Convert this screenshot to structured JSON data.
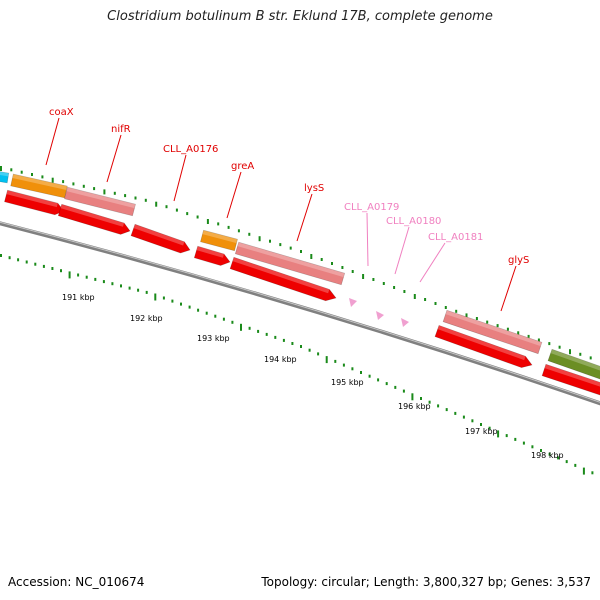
{
  "title": "Clostridium botulinum B str. Eklund 17B, complete genome",
  "footer": {
    "accession": "Accession: NC_010674",
    "topology": "Topology: circular; Length: 3,800,327 bp; Genes: 3,537"
  },
  "colors": {
    "red": "#ee0000",
    "salmon": "#e88080",
    "orange": "#f0900a",
    "olive": "#6b8e23",
    "cyan": "#00c0f0",
    "pink": "#f0a0d0",
    "ticks": "#1a8a1a",
    "backbone": "#808080",
    "label_red": "#e00000",
    "label_pink": "#f080c0"
  },
  "gene_labels": [
    "coaX",
    "nifR",
    "CLL_A0176",
    "greA",
    "lysS",
    "CLL_A0179",
    "CLL_A0180",
    "CLL_A0181",
    "glyS"
  ],
  "scale_labels": [
    "191 kbp",
    "192 kbp",
    "193 kbp",
    "194 kbp",
    "195 kbp",
    "196 kbp",
    "197 kbp",
    "198 kbp"
  ]
}
